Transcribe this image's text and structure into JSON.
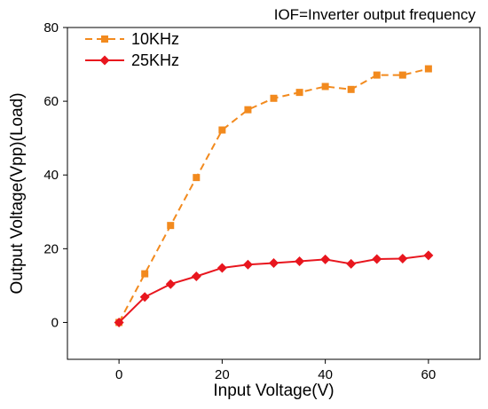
{
  "chart_data": {
    "type": "line",
    "annotation": "IOF=Inverter output frequency",
    "xlabel": "Input Voltage(V)",
    "ylabel": "Output Voltage(Vpp)(Load)",
    "xlim": [
      -10,
      70
    ],
    "ylim": [
      -10,
      80
    ],
    "xticks": [
      0,
      20,
      40,
      60
    ],
    "yticks": [
      0,
      20,
      40,
      60,
      80
    ],
    "x": [
      0,
      5,
      10,
      15,
      20,
      25,
      30,
      35,
      40,
      45,
      50,
      55,
      60
    ],
    "grid": false,
    "legend_position": "top-left",
    "series": [
      {
        "name": "10KHz",
        "color": "#F28A1E",
        "marker": "square",
        "line_style": "dashed",
        "values": [
          0,
          13.2,
          26.3,
          39.3,
          52.2,
          57.7,
          60.8,
          62.4,
          64.0,
          63.2,
          67.1,
          67.1,
          68.8
        ]
      },
      {
        "name": "25KHz",
        "color": "#E8161E",
        "marker": "diamond",
        "line_style": "solid",
        "values": [
          0,
          6.9,
          10.4,
          12.5,
          14.8,
          15.7,
          16.1,
          16.6,
          17.1,
          15.9,
          17.2,
          17.3,
          18.2
        ]
      }
    ]
  }
}
